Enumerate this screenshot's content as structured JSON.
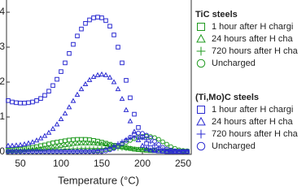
{
  "chart_data": {
    "type": "scatter",
    "x_label": "Temperature (°C)",
    "xlim": [
      33,
      260
    ],
    "ylim": [
      -0.07,
      4.35
    ],
    "xticks": [
      50,
      100,
      150,
      200,
      250
    ],
    "yticks": [
      0,
      1,
      2,
      3,
      4
    ],
    "x": [
      35,
      40,
      45,
      50,
      55,
      60,
      65,
      70,
      75,
      80,
      85,
      90,
      95,
      100,
      105,
      110,
      115,
      120,
      125,
      130,
      135,
      140,
      145,
      150,
      155,
      160,
      165,
      170,
      175,
      180,
      185,
      190,
      195,
      200,
      205,
      210,
      215,
      220,
      225,
      230,
      235,
      240,
      245,
      250,
      255
    ],
    "groups": [
      {
        "name": "TiC steels",
        "color": "#1f9a1f",
        "series": [
          {
            "name": "1 hour after H chargi",
            "marker": "square",
            "values": [
              0.05,
              0.06,
              0.07,
              0.08,
              0.09,
              0.11,
              0.13,
              0.15,
              0.18,
              0.2,
              0.23,
              0.26,
              0.28,
              0.3,
              0.32,
              0.34,
              0.35,
              0.36,
              0.36,
              0.36,
              0.35,
              0.33,
              0.31,
              0.28,
              0.25,
              0.22,
              0.19,
              0.16,
              0.14,
              0.12,
              0.1,
              0.08,
              0.07,
              0.06,
              0.05,
              0.04,
              0.04,
              0.03,
              0.03,
              0.03,
              0.02,
              0.02,
              0.02,
              0.02,
              0.02
            ]
          },
          {
            "name": "24 hours after H cha",
            "marker": "triangle",
            "values": [
              0.03,
              0.03,
              0.04,
              0.04,
              0.05,
              0.06,
              0.07,
              0.08,
              0.09,
              0.11,
              0.12,
              0.14,
              0.16,
              0.18,
              0.2,
              0.21,
              0.23,
              0.24,
              0.25,
              0.25,
              0.25,
              0.25,
              0.24,
              0.23,
              0.22,
              0.2,
              0.18,
              0.16,
              0.14,
              0.12,
              0.1,
              0.08,
              0.06,
              0.05,
              0.04,
              0.03,
              0.03,
              0.02,
              0.02,
              0.02,
              0.02,
              0.01,
              0.01,
              0.01,
              0.01
            ]
          },
          {
            "name": "720 hours after H cha",
            "marker": "plus",
            "values": [
              0.02,
              0.02,
              0.02,
              0.03,
              0.03,
              0.03,
              0.04,
              0.04,
              0.05,
              0.05,
              0.06,
              0.06,
              0.07,
              0.07,
              0.08,
              0.08,
              0.09,
              0.09,
              0.1,
              0.1,
              0.1,
              0.1,
              0.1,
              0.1,
              0.1,
              0.1,
              0.1,
              0.1,
              0.1,
              0.09,
              0.09,
              0.08,
              0.08,
              0.07,
              0.06,
              0.05,
              0.05,
              0.04,
              0.03,
              0.03,
              0.02,
              0.02,
              0.02,
              0.02,
              0.02
            ]
          },
          {
            "name": "Uncharged",
            "marker": "circle",
            "values": [
              0.01,
              0.01,
              0.01,
              0.01,
              0.01,
              0.01,
              0.01,
              0.01,
              0.01,
              0.01,
              0.01,
              0.01,
              0.01,
              0.01,
              0.01,
              0.01,
              0.01,
              0.01,
              0.02,
              0.02,
              0.02,
              0.03,
              0.04,
              0.05,
              0.07,
              0.09,
              0.12,
              0.16,
              0.21,
              0.27,
              0.33,
              0.38,
              0.42,
              0.44,
              0.45,
              0.44,
              0.41,
              0.36,
              0.29,
              0.22,
              0.15,
              0.1,
              0.06,
              0.04,
              0.03
            ]
          }
        ]
      },
      {
        "name": "(Ti,Mo)C steels",
        "color": "#2a2ad0",
        "series": [
          {
            "name": "1 hour after H chargi",
            "marker": "square",
            "values": [
              1.47,
              1.43,
              1.41,
              1.4,
              1.4,
              1.41,
              1.43,
              1.47,
              1.53,
              1.62,
              1.74,
              1.9,
              2.08,
              2.3,
              2.55,
              2.82,
              3.08,
              3.32,
              3.52,
              3.68,
              3.78,
              3.84,
              3.86,
              3.84,
              3.76,
              3.6,
              3.35,
              3.0,
              2.55,
              2.05,
              1.55,
              1.08,
              0.7,
              0.42,
              0.24,
              0.12,
              0.06,
              0.03,
              0.02,
              0.01,
              0.01,
              0.01,
              0.01,
              0.01,
              0.01
            ]
          },
          {
            "name": "24 hours after H cha",
            "marker": "triangle",
            "values": [
              0.18,
              0.18,
              0.19,
              0.2,
              0.22,
              0.25,
              0.28,
              0.33,
              0.39,
              0.46,
              0.55,
              0.66,
              0.79,
              0.94,
              1.1,
              1.28,
              1.46,
              1.64,
              1.8,
              1.94,
              2.06,
              2.15,
              2.2,
              2.22,
              2.2,
              2.13,
              2.0,
              1.8,
              1.52,
              1.2,
              0.88,
              0.58,
              0.34,
              0.18,
              0.09,
              0.05,
              0.03,
              0.02,
              0.02,
              0.01,
              0.01,
              0.01,
              0.01,
              0.01,
              0.01
            ]
          },
          {
            "name": "720 hours after H cha",
            "marker": "plus",
            "values": [
              0.02,
              0.02,
              0.02,
              0.02,
              0.02,
              0.02,
              0.02,
              0.02,
              0.02,
              0.02,
              0.02,
              0.02,
              0.02,
              0.02,
              0.02,
              0.02,
              0.02,
              0.02,
              0.02,
              0.02,
              0.02,
              0.02,
              0.04,
              0.06,
              0.09,
              0.13,
              0.18,
              0.24,
              0.3,
              0.36,
              0.4,
              0.42,
              0.42,
              0.4,
              0.35,
              0.28,
              0.2,
              0.13,
              0.08,
              0.05,
              0.03,
              0.02,
              0.02,
              0.02,
              0.02
            ]
          },
          {
            "name": "Uncharged",
            "marker": "circle",
            "values": [
              0.01,
              0.01,
              0.01,
              0.01,
              0.01,
              0.01,
              0.01,
              0.01,
              0.01,
              0.01,
              0.01,
              0.01,
              0.01,
              0.01,
              0.01,
              0.01,
              0.01,
              0.01,
              0.01,
              0.01,
              0.01,
              0.01,
              0.01,
              0.01,
              0.03,
              0.06,
              0.1,
              0.16,
              0.24,
              0.33,
              0.42,
              0.5,
              0.54,
              0.53,
              0.48,
              0.4,
              0.3,
              0.21,
              0.13,
              0.08,
              0.05,
              0.03,
              0.02,
              0.01,
              0.01
            ]
          }
        ]
      }
    ]
  }
}
